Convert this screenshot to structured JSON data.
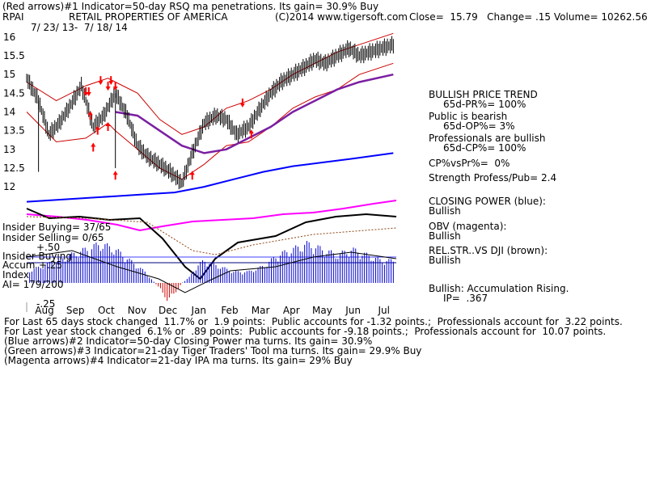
{
  "header": {
    "line1": "(Red arrows)#1 Indicator=50-day RSQ ma penetrations. Its gain= 30.9% Buy",
    "symbol": "RPAI",
    "company": "RETAIL PROPERTIES OF AMERICA",
    "copyright": "(C)2014 www.tigersoft.com",
    "quote": "Close=  15.79   Change= .15 Volume= 10262.56",
    "daterange": "7/ 23/ 13-  7/ 18/ 14"
  },
  "right_panel": {
    "trend_title": "BULLISH PRICE TREND",
    "pr": "65d-PR%= 100%",
    "public_title": "Public is bearish",
    "op": "65d-OP%= 3%",
    "pros_title": "Professionals are bullish",
    "cp": "65d-CP%= 100%",
    "cpvspr": "CP%vsPr%=  0%",
    "strength": "Strength Profess/Pub= 2.4",
    "closing_power": "CLOSING POWER (blue):",
    "closing_power_val": "Bullish",
    "obv": "OBV (magenta):",
    "obv_val": "Bullish",
    "relstr": "REL.STR..VS DJI (brown):",
    "relstr_val": "Bullish",
    "accum": "Bullish: Accumulation Rising.",
    "ip": "IP=  .367"
  },
  "left_labels": {
    "insider_buying": "Insider Buying= 37/65",
    "insider_selling": "Insider Selling= 0/65",
    "plus50": "+.50",
    "insider_buying2": "Insider Buying",
    "accum": "Accum",
    "plus25": "+.25",
    "index": "Index",
    "ai": "AI= 179/200",
    "minus25": "-.25"
  },
  "footer": {
    "l1": "For Last 65 days stock changed  11.7% or  1.9 points:  Public accounts for -1.32 points.;  Professionals account for  3.22 points.",
    "l2": "For Last year stock changed  6.1% or  .89 points:  Public accounts for -9.18 points.;  Professionals account for  10.07 points.",
    "l3": "(Blue arrows)#2 Indicator=50-day Closing Power ma turns. Its gain= 30.9%",
    "l4": "(Green arrows)#3 Indicator=21-day Tiger Traders' Tool ma turns. Its gain= 29.9% Buy",
    "l5": "(Magenta arrows)#4 Indicator=21-day IPA ma turns. Its gain= 29% Buy"
  },
  "colors": {
    "price": "#000000",
    "bands": "#cc0000",
    "ma_purple": "#7b1fa2",
    "closing_power": "#0000ff",
    "obv": "#ff00ff",
    "relstr": "#8b4513",
    "accum_pos": "#0000cc",
    "accum_neg": "#cc0000",
    "arrows": "#ff0000"
  },
  "chart_data": {
    "type": "line",
    "title": "RETAIL PROPERTIES OF AMERICA",
    "x_ticks": [
      "Aug",
      "Sep",
      "Oct",
      "Nov",
      "Dec",
      "Jan",
      "Feb",
      "Mar",
      "Apr",
      "May",
      "Jun",
      "Jul"
    ],
    "y_ticks": [
      12,
      12.5,
      13,
      13.5,
      14,
      14.5,
      15,
      15.5,
      16
    ],
    "ylim": [
      11.7,
      16.3
    ],
    "xlim": [
      0,
      250
    ],
    "series": [
      {
        "key": "price",
        "x": [
          0,
          8,
          15,
          22,
          30,
          37,
          45,
          52,
          60,
          68,
          75,
          82,
          90,
          97,
          105,
          112,
          120,
          128,
          135,
          142,
          150,
          158,
          165,
          172,
          180,
          188,
          195,
          202,
          210,
          218,
          225,
          232,
          240,
          248
        ],
        "values": [
          14.9,
          14.3,
          13.4,
          13.7,
          14.2,
          14.7,
          13.6,
          13.9,
          14.5,
          13.9,
          13.1,
          12.8,
          12.6,
          12.4,
          12.1,
          12.9,
          13.7,
          13.9,
          13.8,
          13.4,
          13.6,
          14.1,
          14.5,
          14.8,
          15.0,
          15.2,
          15.4,
          15.3,
          15.5,
          15.7,
          15.5,
          15.6,
          15.7,
          15.8
        ]
      },
      {
        "key": "ma50",
        "x": [
          60,
          75,
          90,
          105,
          120,
          135,
          150,
          165,
          180,
          195,
          210,
          225,
          248
        ],
        "values": [
          14.0,
          13.9,
          13.5,
          13.1,
          12.9,
          13.0,
          13.3,
          13.6,
          14.0,
          14.3,
          14.6,
          14.8,
          15.0
        ]
      },
      {
        "key": "band_upper",
        "x": [
          0,
          20,
          40,
          55,
          60,
          75,
          90,
          105,
          120,
          135,
          150,
          165,
          180,
          195,
          210,
          225,
          248
        ],
        "values": [
          14.8,
          14.3,
          14.7,
          14.9,
          14.8,
          14.5,
          13.8,
          13.4,
          13.6,
          14.1,
          14.3,
          14.6,
          15.0,
          15.3,
          15.6,
          15.8,
          16.1
        ]
      },
      {
        "key": "band_lower",
        "x": [
          0,
          20,
          40,
          55,
          60,
          75,
          90,
          105,
          120,
          135,
          150,
          165,
          180,
          195,
          210,
          225,
          248
        ],
        "values": [
          14.0,
          13.2,
          13.3,
          13.7,
          13.5,
          13.0,
          12.5,
          12.2,
          12.6,
          13.1,
          13.2,
          13.6,
          14.1,
          14.4,
          14.6,
          15.0,
          15.3
        ]
      },
      {
        "key": "closing_power",
        "x": [
          0,
          40,
          60,
          80,
          100,
          120,
          140,
          160,
          180,
          200,
          220,
          248
        ],
        "values": [
          11.6,
          11.7,
          11.75,
          11.8,
          11.85,
          12.0,
          12.2,
          12.4,
          12.55,
          12.65,
          12.75,
          12.9
        ]
      }
    ],
    "lower_panel": {
      "ylabel": "Accum Index",
      "ylim": [
        -0.3,
        0.6
      ],
      "accum_x": [
        0,
        10,
        20,
        30,
        40,
        50,
        60,
        70,
        80,
        90,
        95,
        100,
        105,
        110,
        115,
        120,
        130,
        140,
        150,
        160,
        170,
        180,
        190,
        200,
        210,
        220,
        230,
        240,
        248
      ],
      "accum_values": [
        0.1,
        0.15,
        0.2,
        0.25,
        0.3,
        0.35,
        0.3,
        0.2,
        0.1,
        -0.05,
        -0.15,
        -0.1,
        0.0,
        0.05,
        0.15,
        0.2,
        0.15,
        0.1,
        0.1,
        0.15,
        0.25,
        0.3,
        0.35,
        0.3,
        0.25,
        0.3,
        0.25,
        0.2,
        0.2
      ]
    }
  }
}
